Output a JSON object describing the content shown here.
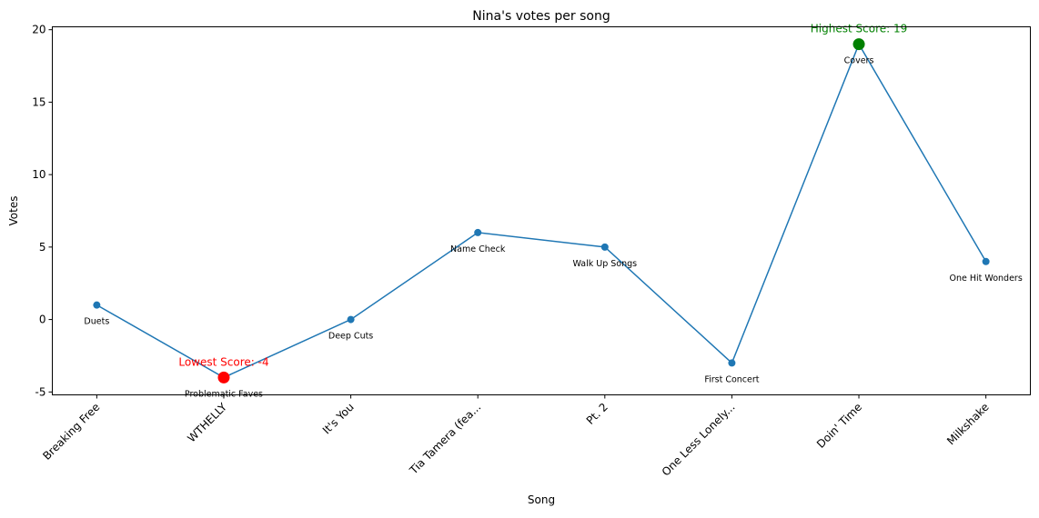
{
  "chart_data": {
    "type": "line",
    "title": "Nina's votes per song",
    "xlabel": "Song",
    "ylabel": "Votes",
    "categories": [
      "Breaking Free",
      "WTHELLY",
      "It's You",
      "Tia Tamera (fea...",
      "Pt. 2",
      "One Less Lonely...",
      "Doin' Time",
      "Milkshake"
    ],
    "values": [
      1,
      -4,
      0,
      6,
      5,
      -3,
      19,
      4
    ],
    "point_labels": [
      "Duets",
      "Problematic Faves",
      "Deep Cuts",
      "Name Check",
      "Walk Up Songs",
      "First Concert",
      "Covers",
      "One Hit Wonders"
    ],
    "ylim": [
      -5.2,
      20.2
    ],
    "yticks": [
      -5,
      0,
      5,
      10,
      15,
      20
    ],
    "grid": false,
    "line_color": "#1f77b4",
    "annotations": [
      {
        "text": "Highest Score: 19",
        "index": 6,
        "color": "#008000"
      },
      {
        "text": "Lowest Score: -4",
        "index": 1,
        "color": "#ff0000"
      }
    ]
  }
}
